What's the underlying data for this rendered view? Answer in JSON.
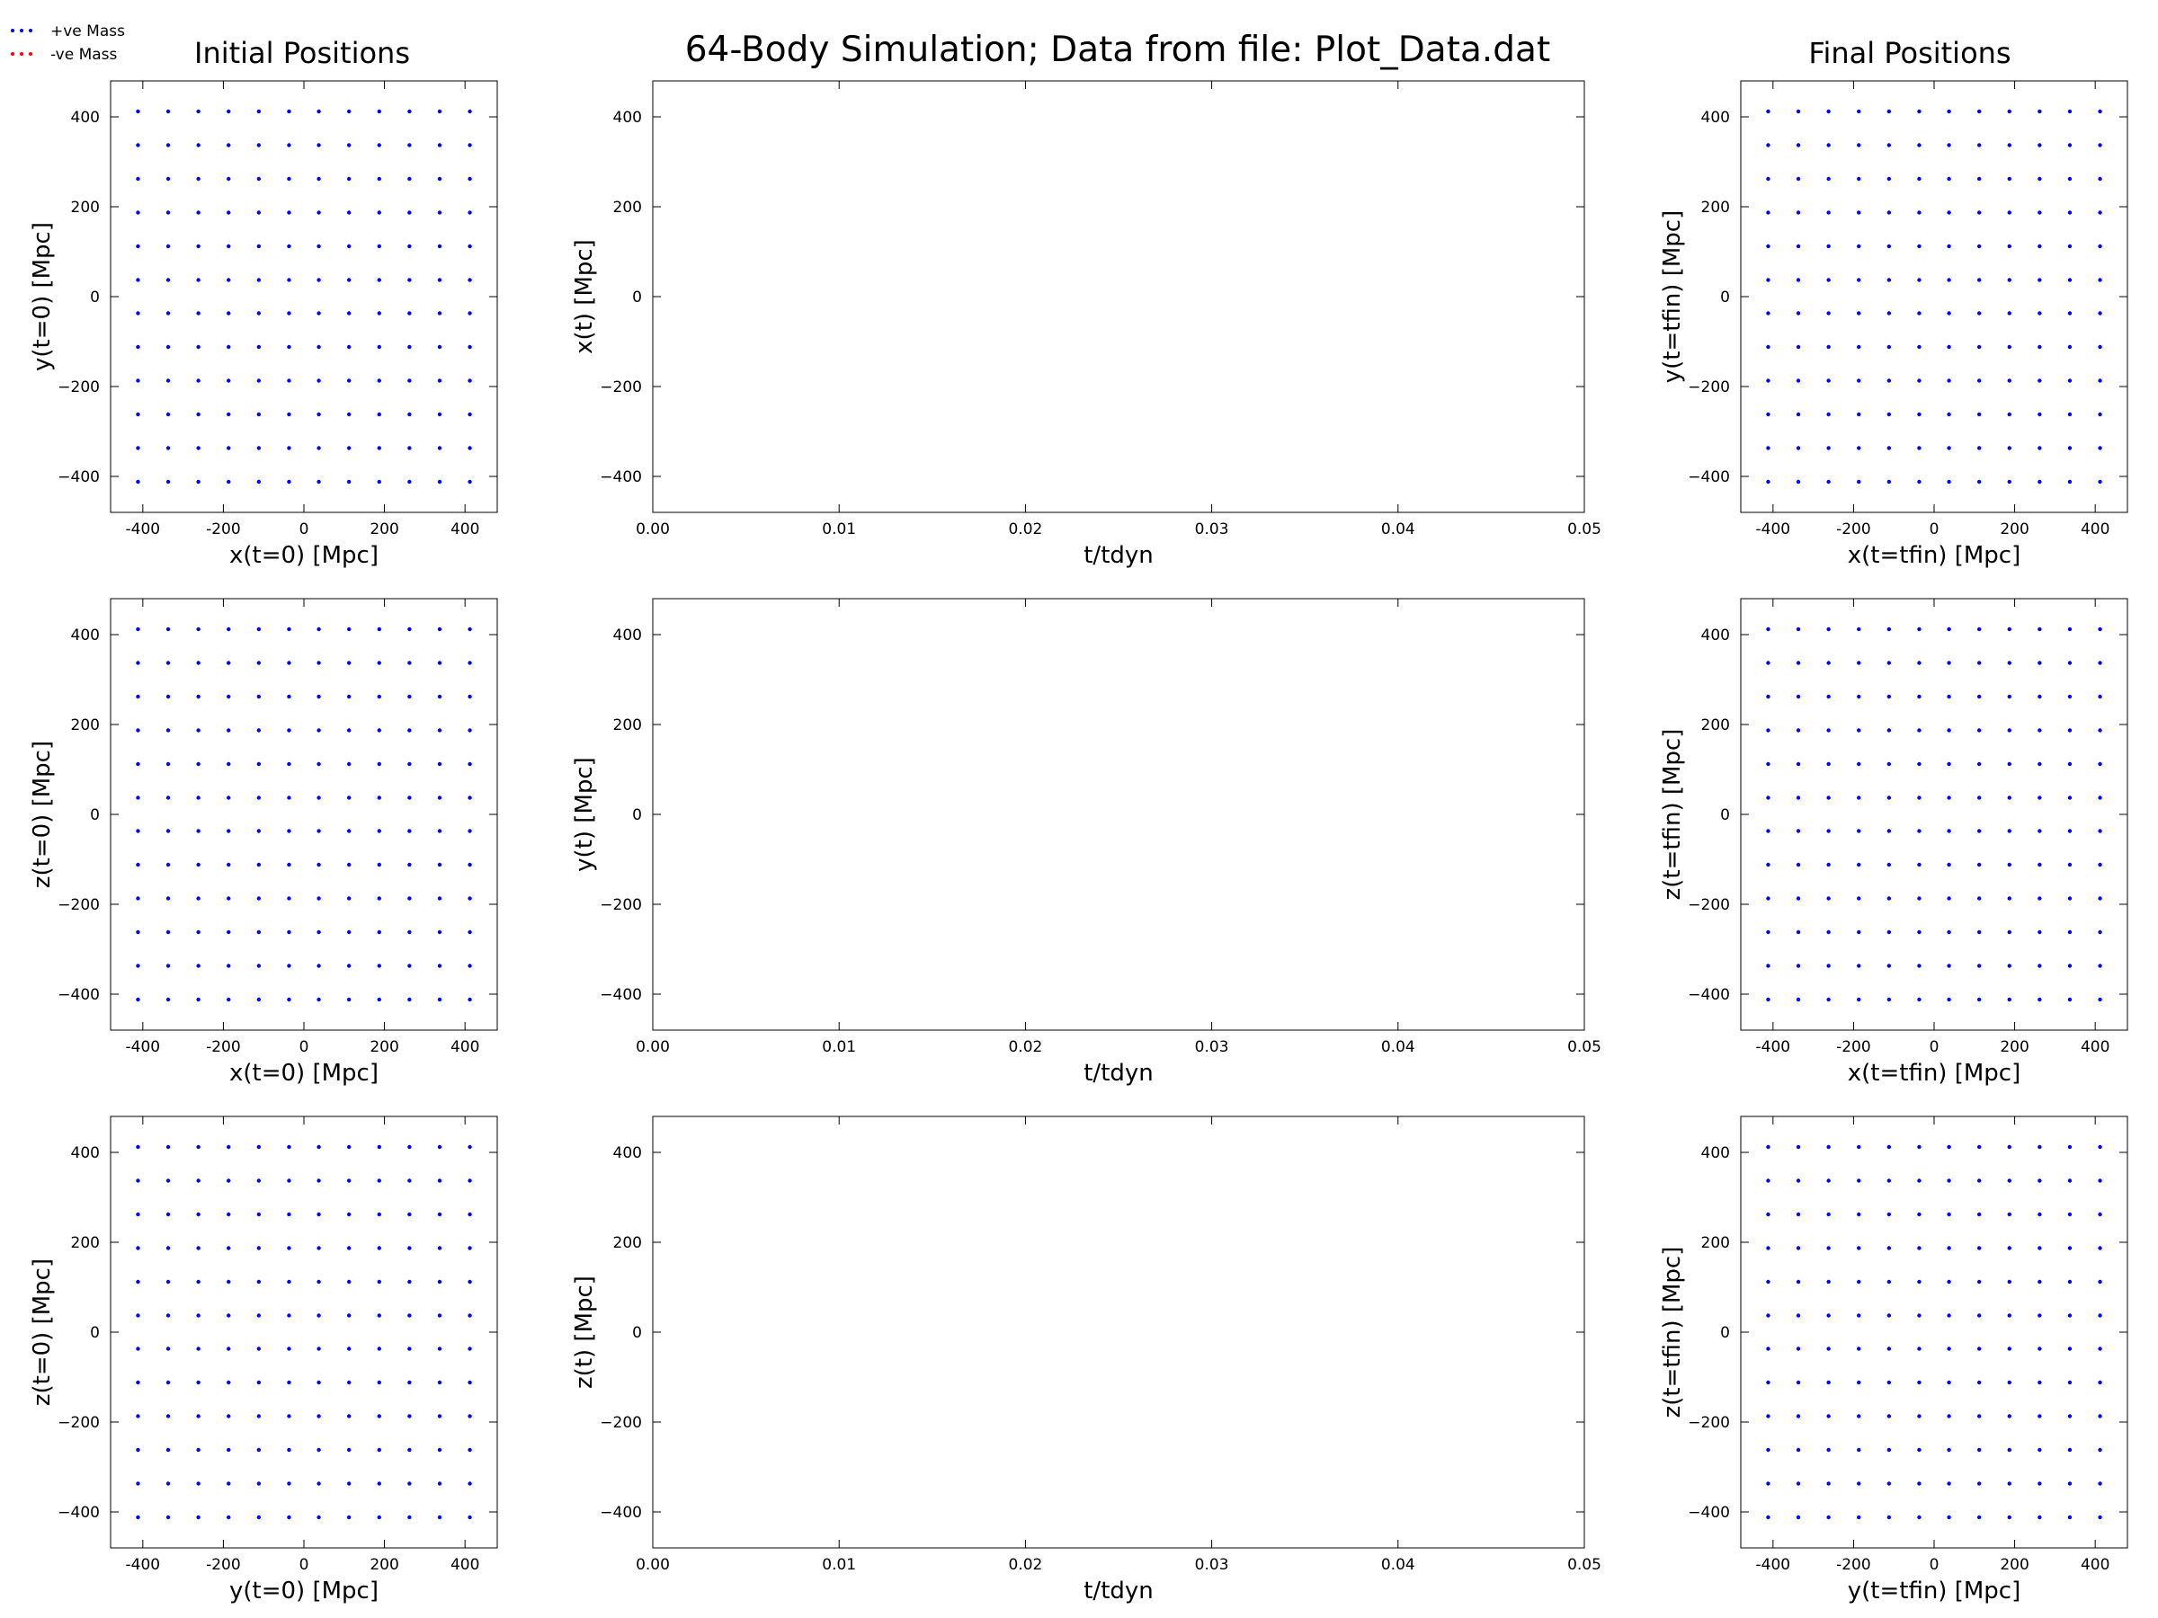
{
  "figure": {
    "suptitle": "64-Body Simulation; Data from file: Plot_Data.dat",
    "left_title": "Initial Positions",
    "right_title": "Final Positions"
  },
  "legend": {
    "entries": [
      {
        "label": "+ve Mass",
        "color": "#0000ff"
      },
      {
        "label": "-ve Mass",
        "color": "#ff0000"
      }
    ],
    "placement": "top-left"
  },
  "colors": {
    "positive_mass": "#0000ff",
    "negative_mass": "#ff0000",
    "axes": "#000000"
  },
  "chart_data": [
    {
      "id": "init_xy",
      "type": "scatter",
      "title": "Initial Positions",
      "xlabel": "x(t=0) [Mpc]",
      "ylabel": "y(t=0) [Mpc]",
      "xlim": [
        -480,
        480
      ],
      "ylim": [
        -480,
        480
      ],
      "xticks": [
        -400,
        -200,
        0,
        200,
        400
      ],
      "yticks": [
        -400,
        -200,
        0,
        200,
        400
      ],
      "grid": false,
      "series": [
        {
          "name": "+ve Mass",
          "color": "#0000ff",
          "grid_x": [
            -412,
            -337,
            -262,
            -187,
            -112,
            -37,
            37,
            112,
            187,
            262,
            337,
            412
          ],
          "grid_y": [
            -412,
            -337,
            -262,
            -187,
            -112,
            -37,
            37,
            112,
            187,
            262,
            337,
            412
          ]
        }
      ]
    },
    {
      "id": "xt",
      "type": "line",
      "xlabel": "t/tdyn",
      "ylabel": "x(t) [Mpc]",
      "xlim": [
        0,
        0.05
      ],
      "ylim": [
        -480,
        480
      ],
      "xticks": [
        "0.00",
        "0.01",
        "0.02",
        "0.03",
        "0.04",
        "0.05"
      ],
      "yticks": [
        -400,
        -200,
        0,
        200,
        400
      ],
      "grid": false,
      "series": []
    },
    {
      "id": "final_xy",
      "type": "scatter",
      "title": "Final Positions",
      "xlabel": "x(t=tfin) [Mpc]",
      "ylabel": "y(t=tfin) [Mpc]",
      "xlim": [
        -480,
        480
      ],
      "ylim": [
        -480,
        480
      ],
      "xticks": [
        -400,
        -200,
        0,
        200,
        400
      ],
      "yticks": [
        -400,
        -200,
        0,
        200,
        400
      ],
      "grid": false,
      "series": [
        {
          "name": "+ve Mass",
          "color": "#0000ff",
          "grid_x": [
            -412,
            -337,
            -262,
            -187,
            -112,
            -37,
            37,
            112,
            187,
            262,
            337,
            412
          ],
          "grid_y": [
            -412,
            -337,
            -262,
            -187,
            -112,
            -37,
            37,
            112,
            187,
            262,
            337,
            412
          ]
        }
      ]
    },
    {
      "id": "init_xz",
      "type": "scatter",
      "xlabel": "x(t=0) [Mpc]",
      "ylabel": "z(t=0) [Mpc]",
      "xlim": [
        -480,
        480
      ],
      "ylim": [
        -480,
        480
      ],
      "xticks": [
        -400,
        -200,
        0,
        200,
        400
      ],
      "yticks": [
        -400,
        -200,
        0,
        200,
        400
      ],
      "grid": false,
      "series": [
        {
          "name": "+ve Mass",
          "color": "#0000ff",
          "grid_x": [
            -412,
            -337,
            -262,
            -187,
            -112,
            -37,
            37,
            112,
            187,
            262,
            337,
            412
          ],
          "grid_y": [
            -412,
            -337,
            -262,
            -187,
            -112,
            -37,
            37,
            112,
            187,
            262,
            337,
            412
          ]
        }
      ]
    },
    {
      "id": "yt",
      "type": "line",
      "xlabel": "t/tdyn",
      "ylabel": "y(t) [Mpc]",
      "xlim": [
        0,
        0.05
      ],
      "ylim": [
        -480,
        480
      ],
      "xticks": [
        "0.00",
        "0.01",
        "0.02",
        "0.03",
        "0.04",
        "0.05"
      ],
      "yticks": [
        -400,
        -200,
        0,
        200,
        400
      ],
      "grid": false,
      "series": []
    },
    {
      "id": "final_xz",
      "type": "scatter",
      "xlabel": "x(t=tfin) [Mpc]",
      "ylabel": "z(t=tfin) [Mpc]",
      "xlim": [
        -480,
        480
      ],
      "ylim": [
        -480,
        480
      ],
      "xticks": [
        -400,
        -200,
        0,
        200,
        400
      ],
      "yticks": [
        -400,
        -200,
        0,
        200,
        400
      ],
      "grid": false,
      "series": [
        {
          "name": "+ve Mass",
          "color": "#0000ff",
          "grid_x": [
            -412,
            -337,
            -262,
            -187,
            -112,
            -37,
            37,
            112,
            187,
            262,
            337,
            412
          ],
          "grid_y": [
            -412,
            -337,
            -262,
            -187,
            -112,
            -37,
            37,
            112,
            187,
            262,
            337,
            412
          ]
        }
      ]
    },
    {
      "id": "init_yz",
      "type": "scatter",
      "xlabel": "y(t=0) [Mpc]",
      "ylabel": "z(t=0) [Mpc]",
      "xlim": [
        -480,
        480
      ],
      "ylim": [
        -480,
        480
      ],
      "xticks": [
        -400,
        -200,
        0,
        200,
        400
      ],
      "yticks": [
        -400,
        -200,
        0,
        200,
        400
      ],
      "grid": false,
      "series": [
        {
          "name": "+ve Mass",
          "color": "#0000ff",
          "grid_x": [
            -412,
            -337,
            -262,
            -187,
            -112,
            -37,
            37,
            112,
            187,
            262,
            337,
            412
          ],
          "grid_y": [
            -412,
            -337,
            -262,
            -187,
            -112,
            -37,
            37,
            112,
            187,
            262,
            337,
            412
          ]
        }
      ]
    },
    {
      "id": "zt",
      "type": "line",
      "xlabel": "t/tdyn",
      "ylabel": "z(t) [Mpc]",
      "xlim": [
        0,
        0.05
      ],
      "ylim": [
        -480,
        480
      ],
      "xticks": [
        "0.00",
        "0.01",
        "0.02",
        "0.03",
        "0.04",
        "0.05"
      ],
      "yticks": [
        -400,
        -200,
        0,
        200,
        400
      ],
      "grid": false,
      "series": []
    },
    {
      "id": "final_yz",
      "type": "scatter",
      "xlabel": "y(t=tfin) [Mpc]",
      "ylabel": "z(t=tfin) [Mpc]",
      "xlim": [
        -480,
        480
      ],
      "ylim": [
        -480,
        480
      ],
      "xticks": [
        -400,
        -200,
        0,
        200,
        400
      ],
      "yticks": [
        -400,
        -200,
        0,
        200,
        400
      ],
      "grid": false,
      "series": [
        {
          "name": "+ve Mass",
          "color": "#0000ff",
          "grid_x": [
            -412,
            -337,
            -262,
            -187,
            -112,
            -37,
            37,
            112,
            187,
            262,
            337,
            412
          ],
          "grid_y": [
            -412,
            -337,
            -262,
            -187,
            -112,
            -37,
            37,
            112,
            187,
            262,
            337,
            412
          ]
        }
      ]
    }
  ]
}
